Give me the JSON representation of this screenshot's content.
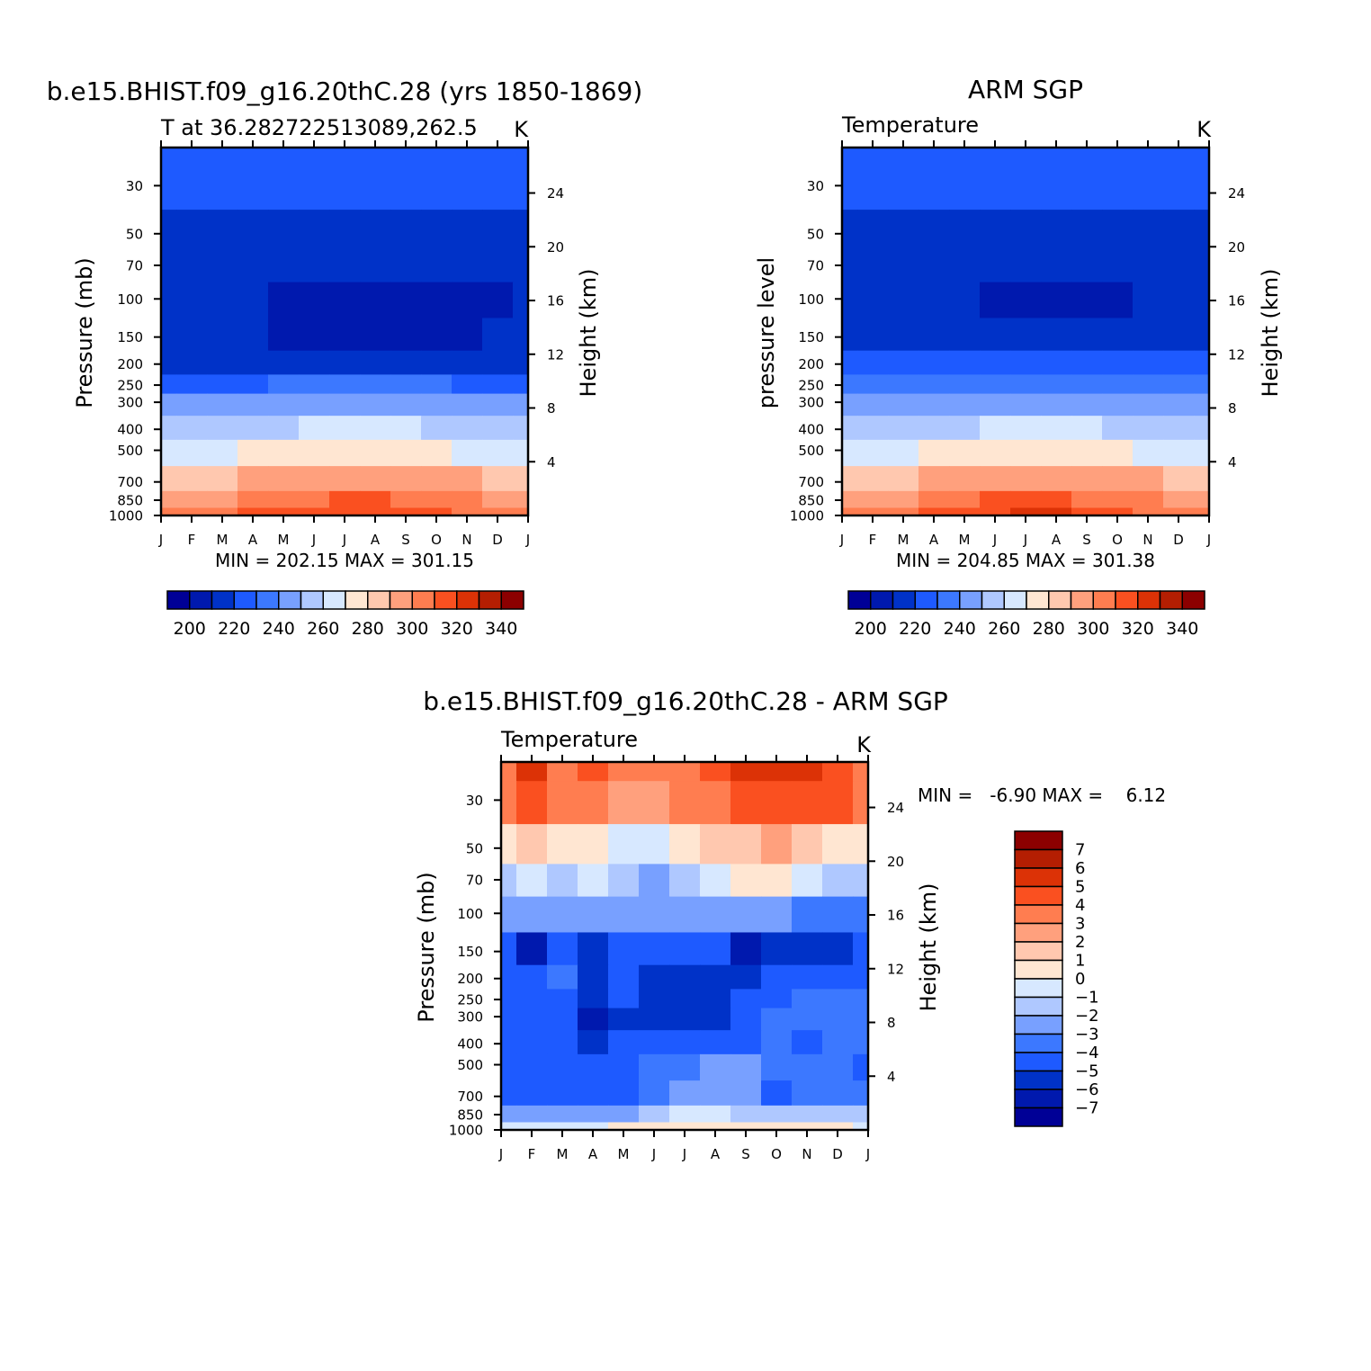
{
  "figure": {
    "panels": [
      {
        "id": "model",
        "title": "b.e15.BHIST.f09_g16.20thC.28 (yrs 1850-1869)",
        "subtitle_left": "T at 36.282722513089,262.5",
        "subtitle_right": "K",
        "ylabel": "Pressure (mb)",
        "ylabel_right": "Height (km)",
        "minmax": "MIN = 202.15 MAX = 301.15"
      },
      {
        "id": "obs",
        "title": "ARM SGP",
        "subtitle_left": "Temperature",
        "subtitle_right": "K",
        "ylabel": "pressure level",
        "ylabel_right": "Height (km)",
        "minmax": "MIN = 204.85 MAX = 301.38"
      },
      {
        "id": "diff",
        "title": "b.e15.BHIST.f09_g16.20thC.28 - ARM SGP",
        "subtitle_left": "Temperature",
        "subtitle_right": "K",
        "ylabel": "Pressure (mb)",
        "ylabel_right": "Height (km)",
        "minmax": "MIN =   -6.90 MAX =    6.12"
      }
    ],
    "months": [
      "J",
      "F",
      "M",
      "A",
      "M",
      "J",
      "J",
      "A",
      "S",
      "O",
      "N",
      "D",
      "J"
    ],
    "pressure_ticks": [
      30,
      50,
      70,
      100,
      150,
      200,
      250,
      300,
      400,
      500,
      700,
      850,
      1000
    ],
    "height_ticks": [
      24,
      20,
      16,
      12,
      8,
      4
    ],
    "abs_colorbar": {
      "labels": [
        "200",
        "220",
        "240",
        "260",
        "280",
        "300",
        "320",
        "340"
      ],
      "colors": [
        "#000096",
        "#0019AE",
        "#0032C8",
        "#1E5AFF",
        "#3C78FF",
        "#78A0FF",
        "#AFC8FF",
        "#D7E8FF",
        "#FFE6D2",
        "#FFC8AF",
        "#FFA07D",
        "#FF7D50",
        "#FA5020",
        "#DC3206",
        "#B41E02",
        "#8C0000"
      ]
    },
    "diff_colorbar": {
      "labels": [
        "7",
        "6",
        "5",
        "4",
        "3",
        "2",
        "1",
        "0",
        "−1",
        "−2",
        "−3",
        "−4",
        "−5",
        "−6",
        "−7"
      ],
      "colors": [
        "#8C0000",
        "#B41E02",
        "#DC3206",
        "#FA5020",
        "#FF7D50",
        "#FFA07D",
        "#FFC8AF",
        "#FFE6D2",
        "#D7E8FF",
        "#AFC8FF",
        "#78A0FF",
        "#3C78FF",
        "#1E5AFF",
        "#0032C8",
        "#0019AE",
        "#000096"
      ]
    }
  },
  "chart_data": [
    {
      "type": "heatmap",
      "panel": "model",
      "title": "b.e15.BHIST.f09_g16.20thC.28 (yrs 1850-1869)",
      "subtitle": "T at 36.282722513089,262.5",
      "units": "K",
      "xlabel": "",
      "ylabel": "Pressure (mb)",
      "y2label": "Height (km)",
      "x": [
        "J",
        "F",
        "M",
        "A",
        "M",
        "J",
        "J",
        "A",
        "S",
        "O",
        "N",
        "D",
        "J"
      ],
      "y_pressure_mb": [
        20,
        30,
        50,
        70,
        100,
        150,
        200,
        250,
        300,
        400,
        500,
        700,
        850,
        1000
      ],
      "levels_K": [
        200,
        205,
        210,
        215,
        220,
        230,
        240,
        250,
        260,
        270,
        280,
        290,
        300
      ],
      "values": [
        [
          214,
          214,
          214,
          214,
          214,
          214,
          214,
          214,
          214,
          214,
          214,
          214,
          214
        ],
        [
          212,
          212,
          212,
          213,
          213,
          214,
          214,
          214,
          214,
          214,
          212,
          212,
          212
        ],
        [
          209,
          209,
          209,
          209,
          209,
          209,
          209,
          209,
          209,
          209,
          209,
          209,
          209
        ],
        [
          206,
          206,
          206,
          206,
          206,
          206,
          206,
          206,
          206,
          206,
          206,
          206,
          206
        ],
        [
          205,
          205,
          205,
          205,
          204,
          204,
          204,
          204,
          204,
          204,
          204,
          204,
          205
        ],
        [
          207,
          206,
          205,
          205,
          204,
          204,
          204,
          204,
          204,
          204,
          204,
          206,
          207
        ],
        [
          209,
          209,
          209,
          208,
          208,
          207,
          207,
          208,
          208,
          208,
          209,
          209,
          209
        ],
        [
          214,
          214,
          214,
          214,
          215,
          216,
          217,
          217,
          216,
          215,
          214,
          214,
          214
        ],
        [
          221,
          221,
          221,
          222,
          223,
          225,
          226,
          226,
          225,
          223,
          222,
          221,
          221
        ],
        [
          235,
          235,
          236,
          237,
          239,
          241,
          243,
          243,
          241,
          239,
          237,
          236,
          235
        ],
        [
          246,
          247,
          248,
          250,
          253,
          255,
          256,
          256,
          254,
          251,
          249,
          247,
          246
        ],
        [
          265,
          266,
          268,
          271,
          274,
          277,
          278,
          278,
          276,
          273,
          270,
          267,
          265
        ],
        [
          274,
          275,
          278,
          281,
          285,
          288,
          290,
          290,
          288,
          284,
          280,
          277,
          274
        ],
        [
          282,
          283,
          286,
          290,
          294,
          297,
          299,
          299,
          297,
          292,
          288,
          284,
          282
        ]
      ],
      "min": 202.15,
      "max": 301.15
    },
    {
      "type": "heatmap",
      "panel": "obs",
      "title": "ARM SGP",
      "subtitle": "Temperature",
      "units": "K",
      "ylabel": "pressure level",
      "y2label": "Height (km)",
      "x": [
        "J",
        "F",
        "M",
        "A",
        "M",
        "J",
        "J",
        "A",
        "S",
        "O",
        "N",
        "D",
        "J"
      ],
      "y_pressure_mb": [
        20,
        30,
        50,
        70,
        100,
        150,
        200,
        250,
        300,
        400,
        500,
        700,
        850,
        1000
      ],
      "levels_K": [
        200,
        205,
        210,
        215,
        220,
        230,
        240,
        250,
        260,
        270,
        280,
        290,
        300
      ],
      "values": [
        [
          212,
          212,
          212,
          213,
          213,
          213,
          214,
          214,
          213,
          212,
          212,
          212,
          212
        ],
        [
          211,
          211,
          211,
          212,
          212,
          213,
          213,
          213,
          213,
          212,
          211,
          211,
          211
        ],
        [
          206,
          206,
          207,
          208,
          208,
          209,
          209,
          209,
          209,
          208,
          208,
          207,
          206
        ],
        [
          205,
          205,
          206,
          205,
          205,
          205,
          205,
          205,
          205,
          205,
          206,
          206,
          205
        ],
        [
          208,
          207,
          206,
          205,
          205,
          204,
          204,
          204,
          204,
          204,
          205,
          207,
          208
        ],
        [
          209,
          209,
          209,
          208,
          207,
          206,
          205,
          205,
          206,
          206,
          207,
          208,
          209
        ],
        [
          210,
          210,
          210,
          210,
          210,
          210,
          210,
          210,
          210,
          210,
          210,
          210,
          210
        ],
        [
          215,
          215,
          215,
          215,
          215,
          216,
          217,
          217,
          216,
          215,
          215,
          215,
          215
        ],
        [
          220,
          220,
          221,
          222,
          223,
          224,
          225,
          225,
          224,
          223,
          222,
          221,
          220
        ],
        [
          234,
          234,
          235,
          237,
          239,
          241,
          242,
          242,
          241,
          239,
          237,
          235,
          234
        ],
        [
          246,
          247,
          248,
          250,
          253,
          255,
          256,
          256,
          254,
          251,
          249,
          247,
          246
        ],
        [
          265,
          266,
          268,
          272,
          275,
          278,
          279,
          279,
          277,
          274,
          270,
          267,
          265
        ],
        [
          273,
          275,
          279,
          283,
          287,
          290,
          291,
          291,
          289,
          285,
          280,
          276,
          273
        ],
        [
          280,
          283,
          287,
          291,
          295,
          299,
          301,
          301,
          298,
          293,
          288,
          283,
          280
        ]
      ],
      "min": 204.85,
      "max": 301.38
    },
    {
      "type": "heatmap",
      "panel": "diff",
      "title": "b.e15.BHIST.f09_g16.20thC.28 - ARM SGP",
      "subtitle": "Temperature",
      "units": "K",
      "ylabel": "Pressure (mb)",
      "y2label": "Height (km)",
      "x": [
        "J",
        "F",
        "M",
        "A",
        "M",
        "J",
        "J",
        "A",
        "S",
        "O",
        "N",
        "D",
        "J"
      ],
      "y_pressure_mb": [
        20,
        30,
        50,
        70,
        100,
        150,
        200,
        250,
        300,
        400,
        500,
        700,
        850,
        1000
      ],
      "levels": [
        -7,
        -6,
        -5,
        -4,
        -3,
        -2,
        -1,
        0,
        1,
        2,
        3,
        4,
        5,
        6,
        7
      ],
      "values": [
        [
          3.5,
          5.5,
          3.5,
          4.5,
          3.5,
          3.5,
          3.8,
          4.5,
          5.8,
          5.0,
          5.0,
          4.5,
          3.8
        ],
        [
          3.2,
          4.0,
          3.5,
          3.5,
          2.8,
          2.5,
          3.0,
          3.5,
          4.2,
          4.0,
          4.0,
          4.0,
          3.8
        ],
        [
          0.8,
          1.5,
          0.3,
          0.6,
          -0.4,
          -0.5,
          0.2,
          1.0,
          1.8,
          2.0,
          1.5,
          0.5,
          0.2
        ],
        [
          -1.5,
          -1.0,
          -1.5,
          -0.5,
          -2.0,
          -2.2,
          -1.5,
          -0.8,
          0.3,
          0.5,
          -1.0,
          -1.2,
          -1.3
        ],
        [
          -3.0,
          -2.8,
          -2.7,
          -2.6,
          -3.0,
          -3.0,
          -2.8,
          -2.6,
          -2.5,
          -3.0,
          -4.0,
          -3.5,
          -3.2
        ],
        [
          -4.6,
          -6.2,
          -4.5,
          -5.8,
          -4.6,
          -5.0,
          -5.0,
          -5.0,
          -6.2,
          -5.3,
          -5.6,
          -5.6,
          -5.0
        ],
        [
          -4.6,
          -4.5,
          -3.2,
          -5.2,
          -4.8,
          -5.4,
          -5.6,
          -5.4,
          -5.2,
          -4.8,
          -4.6,
          -4.6,
          -4.8
        ],
        [
          -4.4,
          -4.4,
          -4.6,
          -5.6,
          -5.0,
          -5.2,
          -5.4,
          -5.3,
          -4.2,
          -4.4,
          -3.6,
          -3.8,
          -3.8
        ],
        [
          -4.6,
          -4.8,
          -5.0,
          -6.2,
          -5.8,
          -5.6,
          -5.5,
          -5.4,
          -4.2,
          -4.0,
          -3.8,
          -3.6,
          -3.6
        ],
        [
          -4.2,
          -4.4,
          -4.8,
          -5.8,
          -5.0,
          -4.6,
          -4.5,
          -4.4,
          -4.2,
          -4.0,
          -4.2,
          -4.0,
          -4.0
        ],
        [
          -4.6,
          -4.8,
          -4.8,
          -5.0,
          -4.5,
          -4.0,
          -3.2,
          -2.8,
          -3.0,
          -4.0,
          -3.6,
          -3.8,
          -4.4
        ],
        [
          -4.2,
          -4.8,
          -4.8,
          -4.6,
          -4.2,
          -3.2,
          -2.6,
          -2.8,
          -3.0,
          -4.8,
          -3.6,
          -3.4,
          -4.0
        ],
        [
          -2.4,
          -2.5,
          -2.6,
          -2.5,
          -2.2,
          -1.5,
          -1.0,
          -0.9,
          -1.2,
          -1.6,
          -1.5,
          -1.3,
          -1.8
        ],
        [
          -0.3,
          -0.2,
          -0.2,
          -0.1,
          0.1,
          0.2,
          0.4,
          0.6,
          0.5,
          0.3,
          0.3,
          0.2,
          -0.2
        ]
      ],
      "min": -6.9,
      "max": 6.12
    }
  ]
}
